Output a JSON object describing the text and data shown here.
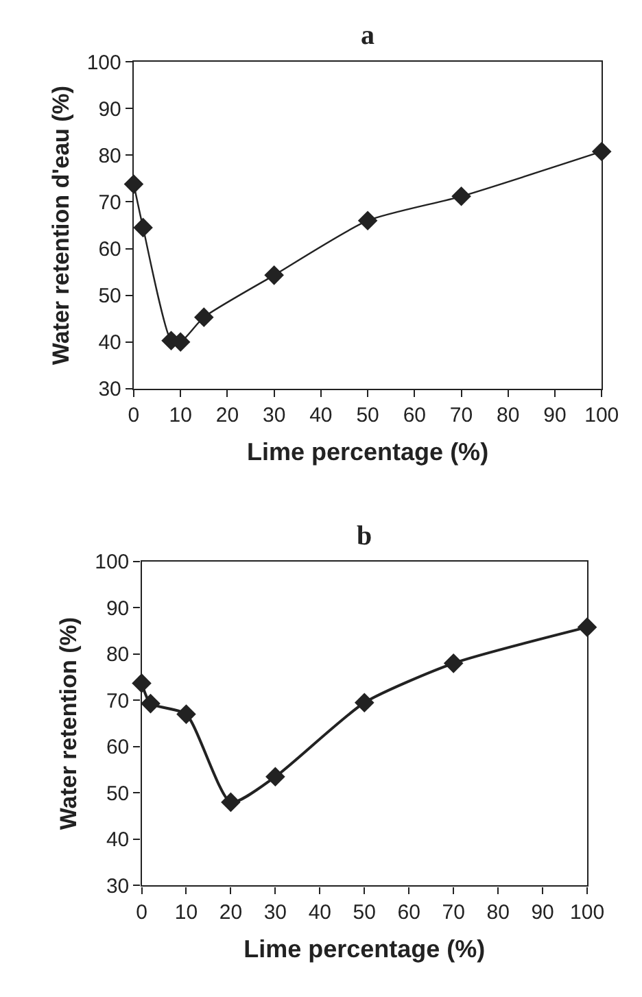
{
  "chart_data": [
    {
      "type": "line",
      "title": "a",
      "xlabel": "Lime percentage (%)",
      "ylabel": "Water retention d'eau (%)",
      "x": [
        0,
        2,
        8,
        10,
        15,
        30,
        50,
        70,
        100
      ],
      "series": [
        {
          "color": "#222222",
          "values": [
            73.8,
            64.5,
            40.3,
            40,
            45.3,
            54.3,
            66,
            71.2,
            80.8
          ]
        }
      ],
      "xlim": [
        0,
        100
      ],
      "xticks": [
        0,
        10,
        20,
        30,
        40,
        50,
        60,
        70,
        80,
        90,
        100
      ],
      "ylim": [
        30,
        100
      ],
      "yticks": [
        30,
        40,
        50,
        60,
        70,
        80,
        90,
        100
      ],
      "marker": "diamond",
      "line_style": "solid"
    },
    {
      "type": "line",
      "title": "b",
      "xlabel": "Lime percentage (%)",
      "ylabel": "Water retention (%)",
      "x": [
        0,
        2,
        10,
        20,
        30,
        50,
        70,
        100
      ],
      "series": [
        {
          "color": "#222222",
          "values": [
            73.7,
            69.3,
            67,
            48,
            53.5,
            69.5,
            78,
            85.8
          ]
        }
      ],
      "xlim": [
        0,
        100
      ],
      "xticks": [
        0,
        10,
        20,
        30,
        40,
        50,
        60,
        70,
        80,
        90,
        100
      ],
      "ylim": [
        30,
        100
      ],
      "yticks": [
        30,
        40,
        50,
        60,
        70,
        80,
        90,
        100
      ],
      "marker": "diamond",
      "line_style": "solid"
    }
  ]
}
